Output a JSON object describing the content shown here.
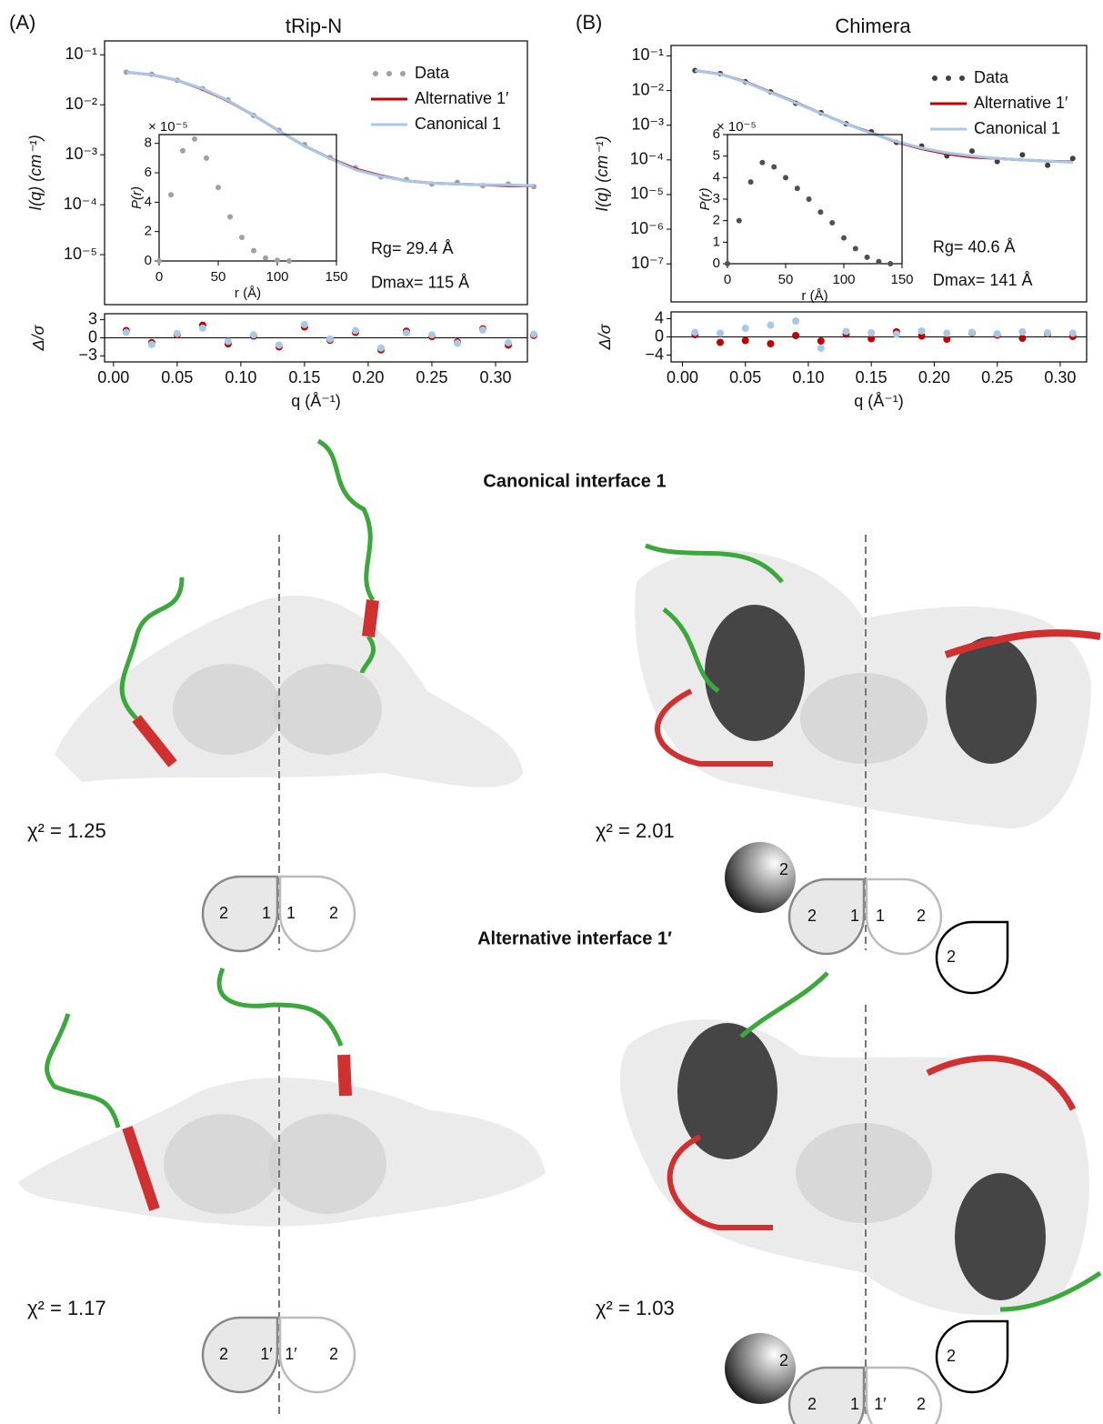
{
  "panels": [
    {
      "label": "(A)",
      "title": "tRip-N"
    },
    {
      "label": "(B)",
      "title": "Chimera"
    }
  ],
  "chart_data": [
    {
      "type": "line",
      "log_y": true,
      "ylabel": "I(q) (cm⁻¹)",
      "xlim": [
        -0.007,
        0.325
      ],
      "ylim": [
        1e-06,
        0.19
      ],
      "yticks": [
        {
          "value": 0.1,
          "label": "10⁻¹"
        },
        {
          "value": 0.01,
          "label": "10⁻²"
        },
        {
          "value": 0.001,
          "label": "10⁻³"
        },
        {
          "value": 0.0001,
          "label": "10⁻⁴"
        },
        {
          "value": 1e-05,
          "label": "10⁻⁵"
        }
      ],
      "x": [
        0.01,
        0.03,
        0.05,
        0.07,
        0.09,
        0.11,
        0.13,
        0.15,
        0.17,
        0.19,
        0.21,
        0.23,
        0.25,
        0.27,
        0.29,
        0.31,
        0.33
      ],
      "series": [
        {
          "name": "Data",
          "color": "#a0a0a0",
          "style": "markers",
          "values": [
            0.045,
            0.041,
            0.031,
            0.021,
            0.0125,
            0.0061,
            0.0031,
            0.0016,
            0.00088,
            0.00055,
            0.00036,
            0.00032,
            0.00026,
            0.00028,
            0.00024,
            0.00026,
            0.00023
          ]
        },
        {
          "name": "Alternative 1′",
          "color": "#c00000",
          "style": "line",
          "values": [
            0.045,
            0.04,
            0.031,
            0.0205,
            0.012,
            0.0062,
            0.003,
            0.0015,
            0.00085,
            0.00052,
            0.00038,
            0.0003,
            0.00027,
            0.00026,
            0.00025,
            0.00024,
            0.00024
          ]
        },
        {
          "name": "Canonical 1",
          "color": "#a8c8e8",
          "style": "line",
          "values": [
            0.045,
            0.04,
            0.031,
            0.021,
            0.0122,
            0.0062,
            0.003,
            0.0015,
            0.00084,
            0.0005,
            0.00037,
            0.0003,
            0.00027,
            0.00026,
            0.00025,
            0.00025,
            0.00024
          ]
        }
      ],
      "legend": "upper right",
      "annotations": [
        "Rg= 29.4 Å",
        "Dmax= 115 Å"
      ]
    },
    {
      "type": "line",
      "ylabel": "P(r)",
      "xlabel": "r (Å)",
      "multiplier": "× 10⁻⁵",
      "xlim": [
        0,
        150
      ],
      "ylim": [
        0,
        8.6
      ],
      "xticks": [
        0,
        50,
        100,
        150
      ],
      "yticks": [
        0,
        2,
        4,
        6,
        8
      ],
      "x": [
        0,
        10,
        20,
        30,
        40,
        50,
        60,
        70,
        80,
        90,
        100,
        110
      ],
      "series": [
        {
          "name": "P(r)",
          "color": "#a0a0a0",
          "style": "markers",
          "values": [
            0,
            4.5,
            7.5,
            8.3,
            7,
            5,
            3,
            1.6,
            0.7,
            0.2,
            0.05,
            0
          ]
        }
      ]
    },
    {
      "type": "scatter",
      "ylabel": "Δ/σ",
      "xlabel": "q (Å⁻¹)",
      "xlim": [
        -0.007,
        0.325
      ],
      "ylim": [
        -4,
        4
      ],
      "xticks": [
        {
          "value": 0,
          "label": "0.00"
        },
        0.05,
        {
          "value": 0.1,
          "label": "0.10"
        },
        0.15,
        {
          "value": 0.2,
          "label": "0.20"
        },
        0.25,
        {
          "value": 0.3,
          "label": "0.30"
        }
      ],
      "yticks": [
        3,
        0,
        {
          "value": -3,
          "label": "−3"
        }
      ],
      "x": [
        0.01,
        0.03,
        0.05,
        0.07,
        0.09,
        0.11,
        0.13,
        0.15,
        0.17,
        0.19,
        0.21,
        0.23,
        0.25,
        0.27,
        0.29,
        0.31,
        0.33
      ],
      "series": [
        {
          "name": "Alternative 1′",
          "color": "#c00000",
          "style": "markers",
          "values": [
            1.2,
            -0.8,
            0.5,
            2.1,
            -1.0,
            0.3,
            -1.5,
            1.8,
            -0.4,
            0.9,
            -2.0,
            1.1,
            0.2,
            -0.7,
            1.5,
            -1.2,
            0.4
          ]
        },
        {
          "name": "Canonical 1",
          "color": "#a8c8e8",
          "style": "markers",
          "values": [
            0.9,
            -1.1,
            0.7,
            1.6,
            -0.6,
            0.5,
            -1.2,
            2.2,
            -0.2,
            1.2,
            -1.7,
            0.8,
            0.5,
            -0.9,
            1.3,
            -0.8,
            0.6
          ]
        }
      ]
    },
    {
      "type": "line",
      "log_y": true,
      "ylabel": "I(q) (cm⁻¹)",
      "xlim": [
        -0.009,
        0.321
      ],
      "ylim": [
        8e-09,
        0.2
      ],
      "yticks": [
        {
          "value": 0.1,
          "label": "10⁻¹"
        },
        {
          "value": 0.01,
          "label": "10⁻²"
        },
        {
          "value": 0.001,
          "label": "10⁻³"
        },
        {
          "value": 0.0001,
          "label": "10⁻⁴"
        },
        {
          "value": 1e-05,
          "label": "10⁻⁵"
        },
        {
          "value": 1e-06,
          "label": "10⁻⁶"
        },
        {
          "value": 1e-07,
          "label": "10⁻⁷"
        }
      ],
      "x": [
        0.01,
        0.03,
        0.05,
        0.07,
        0.09,
        0.11,
        0.13,
        0.15,
        0.17,
        0.19,
        0.21,
        0.23,
        0.25,
        0.27,
        0.29,
        0.31
      ],
      "series": [
        {
          "name": "Data",
          "color": "#404040",
          "style": "markers",
          "values": [
            0.038,
            0.031,
            0.018,
            0.0092,
            0.0043,
            0.0023,
            0.0011,
            0.00065,
            0.00032,
            0.00025,
            0.00013,
            0.00018,
            9e-05,
            0.00014,
            7e-05,
            0.00011
          ]
        },
        {
          "name": "Alternative 1′",
          "color": "#c00000",
          "style": "line",
          "values": [
            0.038,
            0.03,
            0.018,
            0.009,
            0.0045,
            0.0022,
            0.0011,
            0.0006,
            0.00033,
            0.00021,
            0.00015,
            0.00012,
            0.00011,
            0.0001,
            9.2e-05,
            8.8e-05
          ]
        },
        {
          "name": "Canonical 1",
          "color": "#a8c8e8",
          "style": "line",
          "values": [
            0.038,
            0.03,
            0.0175,
            0.0088,
            0.0044,
            0.0022,
            0.0011,
            0.00058,
            0.00034,
            0.00022,
            0.00016,
            0.00013,
            0.00011,
            0.0001,
            9.2e-05,
            8.5e-05
          ]
        }
      ],
      "legend": "upper right",
      "annotations": [
        "Rg= 40.6 Å",
        "Dmax= 141 Å"
      ]
    },
    {
      "type": "line",
      "ylabel": "P(r)",
      "xlabel": "r (Å)",
      "multiplier": "× 10⁻⁵",
      "xlim": [
        0,
        150
      ],
      "ylim": [
        0,
        6
      ],
      "xticks": [
        0,
        50,
        100,
        150
      ],
      "yticks": [
        0,
        1,
        2,
        3,
        4,
        5,
        6
      ],
      "x": [
        0,
        10,
        20,
        30,
        40,
        50,
        60,
        70,
        80,
        90,
        100,
        110,
        120,
        130,
        140
      ],
      "series": [
        {
          "name": "P(r)",
          "color": "#505050",
          "style": "markers",
          "values": [
            0,
            2,
            3.8,
            4.7,
            4.5,
            4,
            3.5,
            3,
            2.4,
            1.9,
            1.2,
            0.7,
            0.3,
            0.1,
            0
          ]
        }
      ]
    },
    {
      "type": "scatter",
      "ylabel": "Δ/σ",
      "xlabel": "q (Å⁻¹)",
      "xlim": [
        -0.009,
        0.321
      ],
      "ylim": [
        -5.5,
        5.5
      ],
      "xticks": [
        {
          "value": 0,
          "label": "0.00"
        },
        0.05,
        {
          "value": 0.1,
          "label": "0.10"
        },
        0.15,
        {
          "value": 0.2,
          "label": "0.20"
        },
        0.25,
        {
          "value": 0.3,
          "label": "0.30"
        }
      ],
      "yticks": [
        4,
        0,
        {
          "value": -4,
          "label": "−4"
        }
      ],
      "x": [
        0.01,
        0.03,
        0.05,
        0.07,
        0.09,
        0.11,
        0.13,
        0.15,
        0.17,
        0.19,
        0.21,
        0.23,
        0.25,
        0.27,
        0.29,
        0.31
      ],
      "series": [
        {
          "name": "Alternative 1′",
          "color": "#c00000",
          "style": "markers",
          "values": [
            0.5,
            -1.2,
            -0.8,
            -1.5,
            0.3,
            -0.9,
            0.6,
            -0.4,
            1.1,
            0.2,
            -0.5,
            0.9,
            0.4,
            -0.3,
            0.7,
            0.1
          ]
        },
        {
          "name": "Canonical 1",
          "color": "#a8c8e8",
          "style": "markers",
          "values": [
            1.0,
            0.8,
            1.9,
            2.6,
            3.5,
            -2.5,
            1.2,
            0.9,
            0.6,
            1.3,
            0.8,
            1.0,
            0.7,
            1.1,
            0.9,
            0.8
          ]
        }
      ]
    }
  ],
  "models": {
    "sections": [
      {
        "title": "Canonical interface 1",
        "fits": [
          {
            "chi2": "χ² = 1.25",
            "labels": [
              "2",
              "1",
              "1",
              "2"
            ]
          },
          {
            "chi2": "χ² = 2.01",
            "labels": [
              "2",
              "2",
              "1",
              "1",
              "2",
              "2"
            ]
          }
        ]
      },
      {
        "title": "Alternative interface 1′",
        "fits": [
          {
            "chi2": "χ² = 1.17",
            "labels": [
              "2",
              "1′",
              "1′",
              "2"
            ]
          },
          {
            "chi2": "χ² = 1.03",
            "labels": [
              "2",
              "2",
              "1",
              "1′",
              "2",
              "2"
            ]
          }
        ]
      }
    ]
  }
}
